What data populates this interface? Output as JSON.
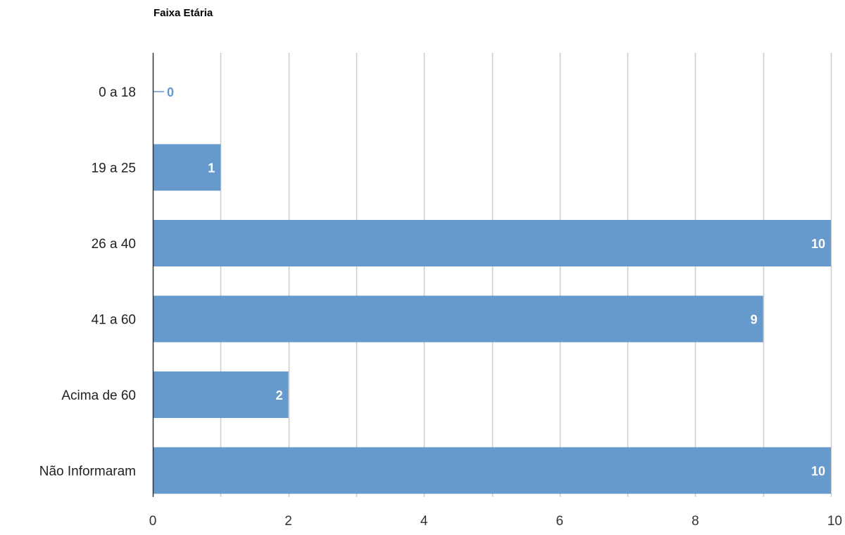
{
  "chart_data": {
    "type": "bar",
    "orientation": "horizontal",
    "title": "Faixa Etária",
    "categories": [
      "0 a 18",
      "19 a 25",
      "26 a 40",
      "41 a 60",
      "Acima de 60",
      "Não Informaram"
    ],
    "values": [
      0,
      1,
      10,
      9,
      2,
      10
    ],
    "data_labels": [
      "0",
      "1",
      "10",
      "9",
      "2",
      "10"
    ],
    "xlim": [
      0,
      10
    ],
    "x_ticks": [
      "0",
      "2",
      "4",
      "6",
      "8",
      "10"
    ],
    "grid": true,
    "legend": "none",
    "bar_color": "#6699cc",
    "label_color_inside": "#ffffff",
    "label_color_outside": "#6699cc",
    "grid_color": "#cccccc"
  }
}
